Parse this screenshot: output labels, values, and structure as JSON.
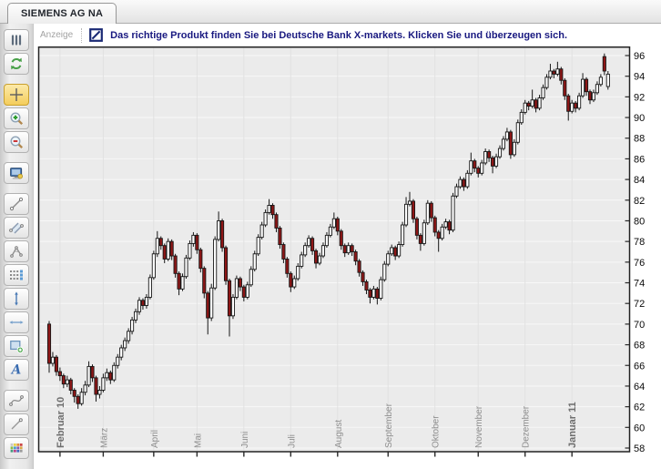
{
  "tab_bar": {
    "tab_label": "SIEMENS AG NA"
  },
  "banner": {
    "label": "Anzeige",
    "logo": "deutsche-bank-logo",
    "text": "Das richtige Produkt finden Sie bei Deutsche Bank X-markets. Klicken Sie und überzeugen sich.",
    "text_color": "#191980"
  },
  "toolbar": {
    "buttons": [
      {
        "name": "chart-type",
        "icon": "candlestick-bars-icon",
        "active": false,
        "gap_before": false
      },
      {
        "name": "refresh",
        "icon": "refresh-icon",
        "active": false,
        "gap_before": false
      },
      {
        "name": "crosshair",
        "icon": "crosshair-icon",
        "active": true,
        "gap_before": true
      },
      {
        "name": "zoom-in",
        "icon": "zoom-in-icon",
        "active": false,
        "gap_before": false
      },
      {
        "name": "zoom-out",
        "icon": "zoom-out-icon",
        "active": false,
        "gap_before": false
      },
      {
        "name": "screen-view",
        "icon": "monitor-icon",
        "active": false,
        "gap_before": true
      },
      {
        "name": "trend-line",
        "icon": "trend-line-icon",
        "active": false,
        "gap_before": true
      },
      {
        "name": "parallel-channel",
        "icon": "parallel-channel-icon",
        "active": false,
        "gap_before": false
      },
      {
        "name": "angle-arc",
        "icon": "angle-arc-icon",
        "active": false,
        "gap_before": false
      },
      {
        "name": "fibonacci-levels",
        "icon": "fibonacci-levels-icon",
        "active": false,
        "gap_before": false
      },
      {
        "name": "vertical-measure",
        "icon": "vertical-measure-icon",
        "active": false,
        "gap_before": false
      },
      {
        "name": "horizontal-measure",
        "icon": "horizontal-measure-icon",
        "active": false,
        "gap_before": false
      },
      {
        "name": "add-rectangle",
        "icon": "add-rectangle-icon",
        "active": false,
        "gap_before": false
      },
      {
        "name": "text-annotation",
        "icon": "text-a-icon",
        "active": false,
        "gap_before": false
      },
      {
        "name": "curve-tool",
        "icon": "curve-icon",
        "active": false,
        "gap_before": true
      },
      {
        "name": "pencil-line",
        "icon": "pencil-line-icon",
        "active": false,
        "gap_before": false
      },
      {
        "name": "color-palette",
        "icon": "palette-icon",
        "active": false,
        "gap_before": false
      }
    ]
  },
  "chart_data": {
    "type": "candlestick",
    "instrument": "SIEMENS AG NA",
    "period": "Februar 2010 - Januar 2011",
    "y_axis": {
      "min": 58,
      "max": 96,
      "step": 2,
      "side": "right",
      "ticks": [
        58,
        60,
        62,
        64,
        66,
        68,
        70,
        72,
        74,
        76,
        78,
        80,
        82,
        84,
        86,
        88,
        90,
        92,
        94,
        96
      ]
    },
    "x_axis": {
      "months": [
        {
          "label": "Februar 10",
          "index": 3,
          "bold": true
        },
        {
          "label": "März",
          "index": 15,
          "bold": false
        },
        {
          "label": "April",
          "index": 29,
          "bold": false
        },
        {
          "label": "Mai",
          "index": 41,
          "bold": false
        },
        {
          "label": "Juni",
          "index": 54,
          "bold": false
        },
        {
          "label": "Juli",
          "index": 67,
          "bold": false
        },
        {
          "label": "August",
          "index": 80,
          "bold": false
        },
        {
          "label": "September",
          "index": 94,
          "bold": false
        },
        {
          "label": "Oktober",
          "index": 107,
          "bold": false
        },
        {
          "label": "November",
          "index": 119,
          "bold": false
        },
        {
          "label": "Dezember",
          "index": 132,
          "bold": false
        },
        {
          "label": "Januar 11",
          "index": 145,
          "bold": true
        }
      ]
    },
    "grid": {
      "horizontal": true,
      "vertical_at_months": true
    },
    "colors": {
      "up_fill": "#ffffff",
      "down_fill": "#8e1616",
      "outline": "#161616",
      "background": "#ebebeb",
      "grid_h": "#f8f8f8",
      "grid_v": "#e1e1e1",
      "axis": "#2a2a2a"
    },
    "ohlc": [
      [
        70,
        70.3,
        65.3,
        66.2
      ],
      [
        66.2,
        67.3,
        65.9,
        66.8
      ],
      [
        66.8,
        67,
        65,
        65.4
      ],
      [
        65.4,
        65.8,
        64.5,
        65
      ],
      [
        65,
        65.2,
        63.8,
        64.2
      ],
      [
        64.2,
        65,
        63.9,
        64.6
      ],
      [
        64.6,
        64.8,
        63.2,
        63.6
      ],
      [
        63.6,
        63.8,
        62.4,
        63
      ],
      [
        63,
        63.2,
        61.8,
        62.3
      ],
      [
        62.3,
        63.8,
        62.1,
        63.4
      ],
      [
        63.4,
        64.5,
        63.1,
        64.1
      ],
      [
        64.1,
        66.4,
        63.9,
        65.9
      ],
      [
        65.9,
        66.1,
        64.4,
        64.8
      ],
      [
        64.8,
        65,
        62.5,
        63.2
      ],
      [
        63.2,
        64,
        62.8,
        63.6
      ],
      [
        63.6,
        65.2,
        63.4,
        64.8
      ],
      [
        64.8,
        65.7,
        64.5,
        65.3
      ],
      [
        65.3,
        65.5,
        64.2,
        64.6
      ],
      [
        64.6,
        66.3,
        64.4,
        66
      ],
      [
        66,
        67.1,
        65.7,
        66.8
      ],
      [
        66.8,
        68,
        66.5,
        67.7
      ],
      [
        67.7,
        68.7,
        67.4,
        68.4
      ],
      [
        68.4,
        69.6,
        68.1,
        69.3
      ],
      [
        69.3,
        70.7,
        69,
        70.4
      ],
      [
        70.4,
        71.5,
        70.1,
        71.2
      ],
      [
        71.2,
        72.6,
        70.9,
        72.3
      ],
      [
        72.3,
        72.5,
        71.4,
        71.8
      ],
      [
        71.8,
        72.9,
        71.5,
        72.6
      ],
      [
        72.6,
        74.8,
        72.4,
        74.5
      ],
      [
        74.5,
        77.1,
        74.3,
        76.8
      ],
      [
        76.8,
        79,
        76.5,
        78.3
      ],
      [
        78.3,
        78.5,
        77.2,
        77.6
      ],
      [
        77.6,
        77.8,
        75.9,
        76.3
      ],
      [
        76.3,
        78.3,
        76.1,
        78
      ],
      [
        78,
        78.2,
        76.2,
        76.6
      ],
      [
        76.6,
        76.8,
        74.5,
        74.9
      ],
      [
        74.9,
        75.1,
        72.8,
        73.4
      ],
      [
        73.4,
        74.9,
        73.2,
        74.6
      ],
      [
        74.6,
        76.7,
        74.4,
        76.4
      ],
      [
        76.4,
        78.1,
        76.2,
        77.8
      ],
      [
        77.8,
        78.9,
        77.5,
        78.6
      ],
      [
        78.6,
        78.8,
        76.8,
        77.2
      ],
      [
        77.2,
        77.4,
        75,
        75.4
      ],
      [
        75.4,
        75.6,
        72.5,
        73
      ],
      [
        73,
        73.2,
        69,
        70.6
      ],
      [
        70.6,
        73.9,
        70.3,
        73.5
      ],
      [
        73.5,
        78.5,
        73.3,
        78.2
      ],
      [
        78.2,
        80.9,
        78,
        80
      ],
      [
        80,
        80.2,
        77,
        77.4
      ],
      [
        77.4,
        77.6,
        73.8,
        74.2
      ],
      [
        74.2,
        74.4,
        68.8,
        70.8
      ],
      [
        70.8,
        72.9,
        70.5,
        72.6
      ],
      [
        72.6,
        74.7,
        72.4,
        74.4
      ],
      [
        74.4,
        74.6,
        73.2,
        73.6
      ],
      [
        73.6,
        73.8,
        72.2,
        72.6
      ],
      [
        72.6,
        74.1,
        72.4,
        73.8
      ],
      [
        73.8,
        75.6,
        73.6,
        75.3
      ],
      [
        75.3,
        77.1,
        75.1,
        76.8
      ],
      [
        76.8,
        78.7,
        76.6,
        78.4
      ],
      [
        78.4,
        79.9,
        78.2,
        79.6
      ],
      [
        79.6,
        81.1,
        79.4,
        80.8
      ],
      [
        80.8,
        82.1,
        80.6,
        81.5
      ],
      [
        81.5,
        81.7,
        80.2,
        80.6
      ],
      [
        80.6,
        80.8,
        78.9,
        79.3
      ],
      [
        79.3,
        79.5,
        77.3,
        77.7
      ],
      [
        77.7,
        77.9,
        75.9,
        76.3
      ],
      [
        76.3,
        76.5,
        74.5,
        74.9
      ],
      [
        74.9,
        75.1,
        73.1,
        73.6
      ],
      [
        73.6,
        74.7,
        73.4,
        74.4
      ],
      [
        74.4,
        75.9,
        74.2,
        75.6
      ],
      [
        75.6,
        77,
        75.4,
        76.7
      ],
      [
        76.7,
        77.9,
        76.5,
        77.6
      ],
      [
        77.6,
        78.6,
        77.4,
        78.3
      ],
      [
        78.3,
        78.5,
        76.7,
        77.1
      ],
      [
        77.1,
        77.3,
        75.4,
        75.9
      ],
      [
        75.9,
        76.9,
        75.7,
        76.6
      ],
      [
        76.6,
        77.9,
        76.4,
        77.6
      ],
      [
        77.6,
        78.9,
        77.4,
        78.6
      ],
      [
        78.6,
        79.7,
        78.4,
        79.4
      ],
      [
        79.4,
        80.8,
        79.2,
        80.2
      ],
      [
        80.2,
        80.4,
        78.6,
        79
      ],
      [
        79,
        79.2,
        77.2,
        77.6
      ],
      [
        77.6,
        77.8,
        76.5,
        76.9
      ],
      [
        76.9,
        77.9,
        76.7,
        77.6
      ],
      [
        77.6,
        77.8,
        76.6,
        77
      ],
      [
        77,
        77.2,
        75.7,
        76.1
      ],
      [
        76.1,
        76.3,
        74.6,
        75
      ],
      [
        75,
        75.2,
        73.7,
        74.1
      ],
      [
        74.1,
        74.3,
        72.9,
        73.3
      ],
      [
        73.3,
        73.5,
        72,
        72.6
      ],
      [
        72.6,
        73.7,
        72.4,
        73.4
      ],
      [
        73.4,
        73.6,
        71.9,
        72.5
      ],
      [
        72.5,
        74.6,
        72.3,
        74.3
      ],
      [
        74.3,
        76.1,
        74.1,
        75.8
      ],
      [
        75.8,
        77.1,
        75.6,
        76.8
      ],
      [
        76.8,
        77.7,
        76.6,
        77.4
      ],
      [
        77.4,
        77.6,
        76.2,
        76.6
      ],
      [
        76.6,
        78,
        76.4,
        77.7
      ],
      [
        77.7,
        79.9,
        77.5,
        79.6
      ],
      [
        79.6,
        82.3,
        79.4,
        81.6
      ],
      [
        81.6,
        82.8,
        81.4,
        81.9
      ],
      [
        81.9,
        82.1,
        79.8,
        80.2
      ],
      [
        80.2,
        80.4,
        78.2,
        78.6
      ],
      [
        78.6,
        78.8,
        77.1,
        77.8
      ],
      [
        77.8,
        80.1,
        77.6,
        79.8
      ],
      [
        79.8,
        82,
        79.6,
        81.7
      ],
      [
        81.7,
        81.9,
        79.9,
        80.3
      ],
      [
        80.3,
        80.5,
        78.5,
        78.9
      ],
      [
        78.9,
        79.1,
        77,
        78.3
      ],
      [
        78.3,
        79.7,
        78.1,
        79.4
      ],
      [
        79.4,
        80.2,
        79.2,
        79.9
      ],
      [
        79.9,
        80.1,
        78.7,
        79.1
      ],
      [
        79.1,
        82.7,
        78.9,
        82.4
      ],
      [
        82.4,
        83.6,
        82.2,
        83.3
      ],
      [
        83.3,
        84.3,
        83.1,
        84
      ],
      [
        84,
        84.2,
        82.9,
        83.3
      ],
      [
        83.3,
        84.9,
        83.1,
        84.6
      ],
      [
        84.6,
        86.6,
        84.4,
        85.8
      ],
      [
        85.8,
        86,
        84.7,
        85.1
      ],
      [
        85.1,
        85.3,
        84.2,
        84.6
      ],
      [
        84.6,
        85.9,
        84.4,
        85.6
      ],
      [
        85.6,
        87,
        85.4,
        86.7
      ],
      [
        86.7,
        86.9,
        85.7,
        86.1
      ],
      [
        86.1,
        86.3,
        84.6,
        85.3
      ],
      [
        85.3,
        86.5,
        85.1,
        86.2
      ],
      [
        86.2,
        87.3,
        86,
        87
      ],
      [
        87,
        88.2,
        86.8,
        87.9
      ],
      [
        87.9,
        89,
        87.7,
        88.6
      ],
      [
        88.6,
        88.8,
        86,
        86.4
      ],
      [
        86.4,
        87.9,
        86.2,
        87.6
      ],
      [
        87.6,
        89.8,
        87.4,
        89.5
      ],
      [
        89.5,
        90.8,
        89.3,
        90.5
      ],
      [
        90.5,
        91.7,
        90.3,
        91.4
      ],
      [
        91.4,
        91.6,
        90.7,
        91.1
      ],
      [
        91.1,
        92.7,
        90.9,
        91.7
      ],
      [
        91.7,
        91.9,
        90.5,
        90.9
      ],
      [
        90.9,
        92.2,
        90.7,
        91.9
      ],
      [
        91.9,
        93.2,
        91.7,
        92.9
      ],
      [
        92.9,
        94.2,
        92.7,
        93.9
      ],
      [
        93.9,
        95.2,
        93.7,
        94.5
      ],
      [
        94.5,
        94.7,
        93.8,
        94.2
      ],
      [
        94.2,
        95.4,
        94,
        94.7
      ],
      [
        94.7,
        94.9,
        93.2,
        93.6
      ],
      [
        93.6,
        93.8,
        91.7,
        92.1
      ],
      [
        92.1,
        92.3,
        89.7,
        90.6
      ],
      [
        90.6,
        91.7,
        90.4,
        91.4
      ],
      [
        91.4,
        91.6,
        90.5,
        90.9
      ],
      [
        90.9,
        92.4,
        90.7,
        92.1
      ],
      [
        92.1,
        94.3,
        91.9,
        93.7
      ],
      [
        93.7,
        93.9,
        92.1,
        92.5
      ],
      [
        92.5,
        92.7,
        91.3,
        91.7
      ],
      [
        91.7,
        92.7,
        91.5,
        92.4
      ],
      [
        92.4,
        93.5,
        92.2,
        93.2
      ],
      [
        93.2,
        94.2,
        93,
        93.9
      ],
      [
        95.9,
        96.2,
        94.1,
        94.5
      ],
      [
        93,
        94.5,
        92.7,
        94.2
      ]
    ]
  }
}
